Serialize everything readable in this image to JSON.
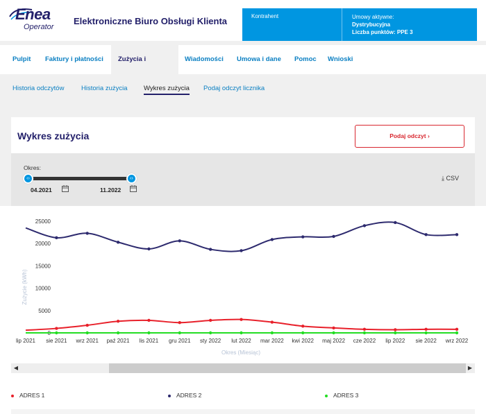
{
  "header": {
    "logo_main": "Enea",
    "logo_sub": "Operator",
    "title": "Elektroniczne Biuro Obsługi Klienta",
    "contract": {
      "kontrahent_label": "Kontrahent",
      "umowy_label": "Umowy aktywne:",
      "umowy_value": "Dystrybucyjna",
      "punkty_label": "Liczba punktów: PPE 3"
    }
  },
  "nav": {
    "items": [
      {
        "label": "Pulpit"
      },
      {
        "label": "Faktury i płatności"
      },
      {
        "label": "Zużycia i odczyty"
      },
      {
        "label": "Wiadomości"
      },
      {
        "label": "Umowa i dane"
      },
      {
        "label": "Pomoc"
      },
      {
        "label": "Wnioski"
      }
    ],
    "active_index": 2
  },
  "subnav": {
    "items": [
      {
        "label": "Historia odczytów"
      },
      {
        "label": "Historia zużycia"
      },
      {
        "label": "Wykres zużycia"
      },
      {
        "label": "Podaj odczyt licznika"
      }
    ],
    "active_index": 2
  },
  "panel": {
    "title": "Wykres zużycia",
    "button_label": "Podaj odczyt ›",
    "okres_label": "Okres:",
    "date_from": "04.2021",
    "date_to": "11.2022",
    "csv_label": "⤓ CSV"
  },
  "colors": {
    "adres1": "#e8202a",
    "adres2": "#2d2a6e",
    "adres3": "#22dd22",
    "accent": "#0096e1",
    "brand": "#23206a"
  },
  "chart_data": {
    "type": "line",
    "ylabel": "Zużycie (kWh)",
    "xlabel": "Okres (Miesiąc)",
    "ylim": [
      0,
      25000
    ],
    "y_ticks": [
      "0",
      "5000",
      "10000",
      "15000",
      "20000",
      "25000"
    ],
    "categories": [
      "lip 2021",
      "sie 2021",
      "wrz 2021",
      "paź 2021",
      "lis 2021",
      "gru 2021",
      "sty 2022",
      "lut 2022",
      "mar 2022",
      "kwi 2022",
      "maj 2022",
      "cze 2022",
      "lip 2022",
      "sie 2022",
      "wrz 2022"
    ],
    "series": [
      {
        "name": "ADRES 1",
        "values": [
          600,
          1000,
          1700,
          2600,
          2800,
          2300,
          2800,
          3000,
          2400,
          1500,
          1100,
          800,
          700,
          800,
          800
        ]
      },
      {
        "name": "ADRES 2",
        "values": [
          23500,
          21300,
          22300,
          20300,
          18800,
          20600,
          18700,
          18400,
          20900,
          21500,
          21600,
          24000,
          24700,
          22000,
          22000
        ]
      },
      {
        "name": "ADRES 3",
        "values": [
          0,
          0,
          0,
          0,
          0,
          0,
          0,
          0,
          0,
          0,
          0,
          0,
          0,
          0,
          0
        ]
      }
    ],
    "grid": false,
    "legend_position": "bottom"
  }
}
